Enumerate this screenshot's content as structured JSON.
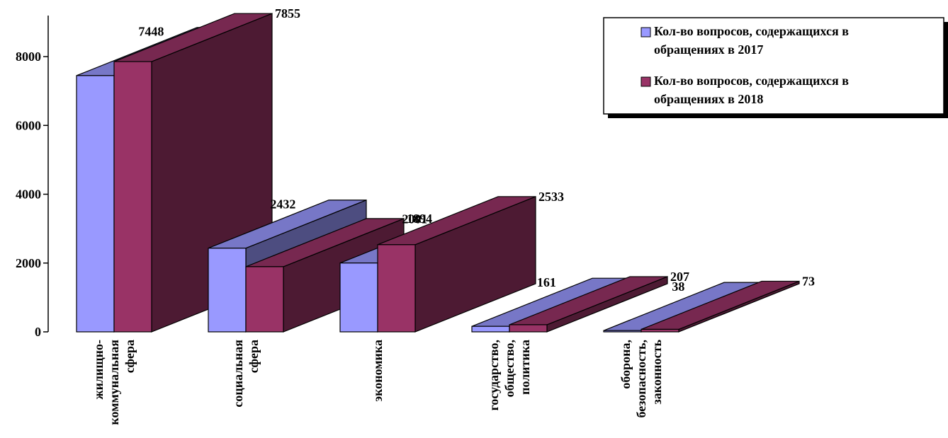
{
  "chart_data": {
    "type": "bar3d",
    "categories": [
      [
        "жилищно-",
        "коммунальная",
        "сфера"
      ],
      [
        "социальная",
        "сфера"
      ],
      [
        "экономика"
      ],
      [
        "государство,",
        "общество,",
        "политика"
      ],
      [
        "оборона,",
        "безопасность,",
        "законность"
      ]
    ],
    "series": [
      {
        "name": "Кол-во вопросов, содержащихся в обращениях в 2017",
        "name_lines": [
          "Кол-во вопросов, содержащихся в",
          "обращениях в 2017"
        ],
        "color": "#9999ff",
        "values": [
          7448,
          2432,
          2001,
          161,
          38
        ]
      },
      {
        "name": "Кол-во вопросов, содержащихся в обращениях в 2018",
        "name_lines": [
          "Кол-во вопросов, содержащихся в",
          "обращениях в 2018"
        ],
        "color": "#993366",
        "values": [
          7855,
          1894,
          2533,
          207,
          73
        ]
      }
    ],
    "ylim": [
      0,
      8000
    ],
    "yticks": [
      0,
      2000,
      4000,
      6000,
      8000
    ],
    "legend": "top-right"
  }
}
